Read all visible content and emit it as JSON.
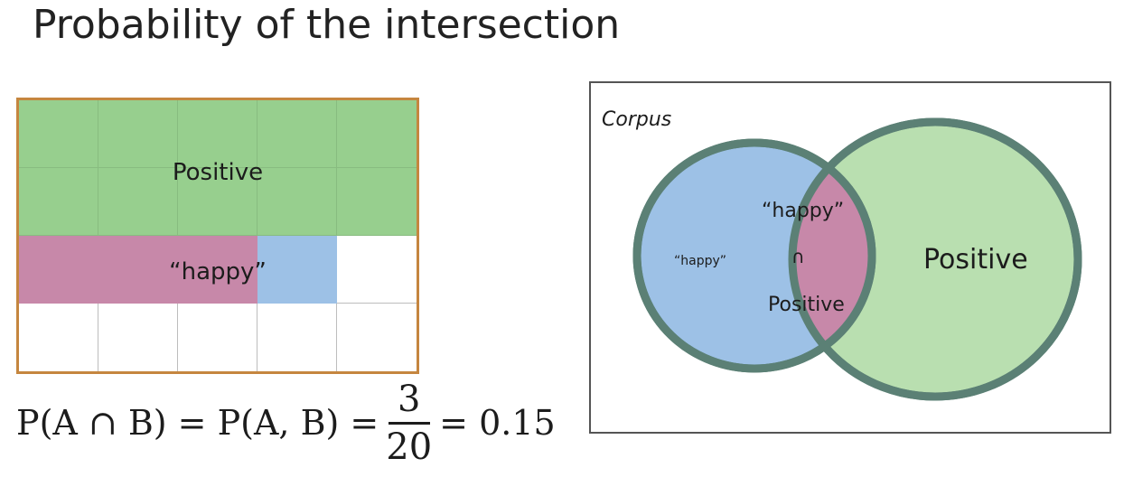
{
  "title": "Probability of the intersection",
  "grid": {
    "label_positive": "Positive",
    "label_happy": "“happy”"
  },
  "formula": {
    "lhs": "P(A ∩ B) = P(A, B) =",
    "numerator": "3",
    "denominator": "20",
    "rhs": "= 0.15"
  },
  "venn": {
    "corpus_label": "Corpus",
    "happy_only_label": "“happy”",
    "intersection_top": "“happy”",
    "intersection_symbol": "∩",
    "intersection_bottom": "Positive",
    "positive_label": "Positive"
  },
  "colors": {
    "positive_green": "#97cf8e",
    "happy_blue": "#9dc1e6",
    "intersection_pink": "#c788a9",
    "circle_border": "#5b8075",
    "grid_border": "#c5863f"
  }
}
